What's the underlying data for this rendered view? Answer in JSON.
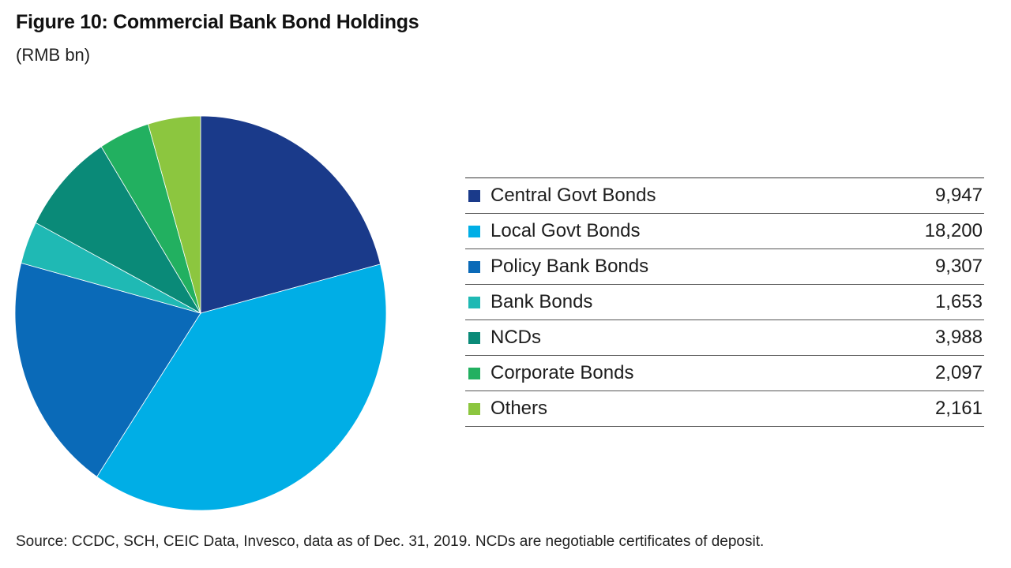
{
  "header": {
    "title": "Figure 10:  Commercial Bank Bond Holdings",
    "subtitle": "(RMB bn)"
  },
  "footer": {
    "source": "Source: CCDC, SCH, CEIC Data, Invesco, data as of Dec. 31, 2019. NCDs are negotiable certificates of deposit."
  },
  "chart_data": {
    "type": "pie",
    "title": "Figure 10:  Commercial Bank Bond Holdings",
    "subtitle": "(RMB bn)",
    "start_angle": "12 o'clock",
    "direction": "clockwise",
    "legend_placement": "right",
    "slices": [
      {
        "label": "Central Govt Bonds",
        "value": 9947,
        "display": "9,947",
        "color": "#1a3a8a"
      },
      {
        "label": "Local Govt Bonds",
        "value": 18200,
        "display": "18,200",
        "color": "#00aee6"
      },
      {
        "label": "Policy Bank Bonds",
        "value": 9307,
        "display": "9,307",
        "color": "#0a6ab8"
      },
      {
        "label": "Bank Bonds",
        "value": 1653,
        "display": "1,653",
        "color": "#1fb9b4"
      },
      {
        "label": "NCDs",
        "value": 3988,
        "display": "3,988",
        "color": "#0a8a78"
      },
      {
        "label": "Corporate Bonds",
        "value": 2097,
        "display": "2,097",
        "color": "#22b060"
      },
      {
        "label": "Others",
        "value": 2161,
        "display": "2,161",
        "color": "#8cc63f"
      }
    ]
  }
}
